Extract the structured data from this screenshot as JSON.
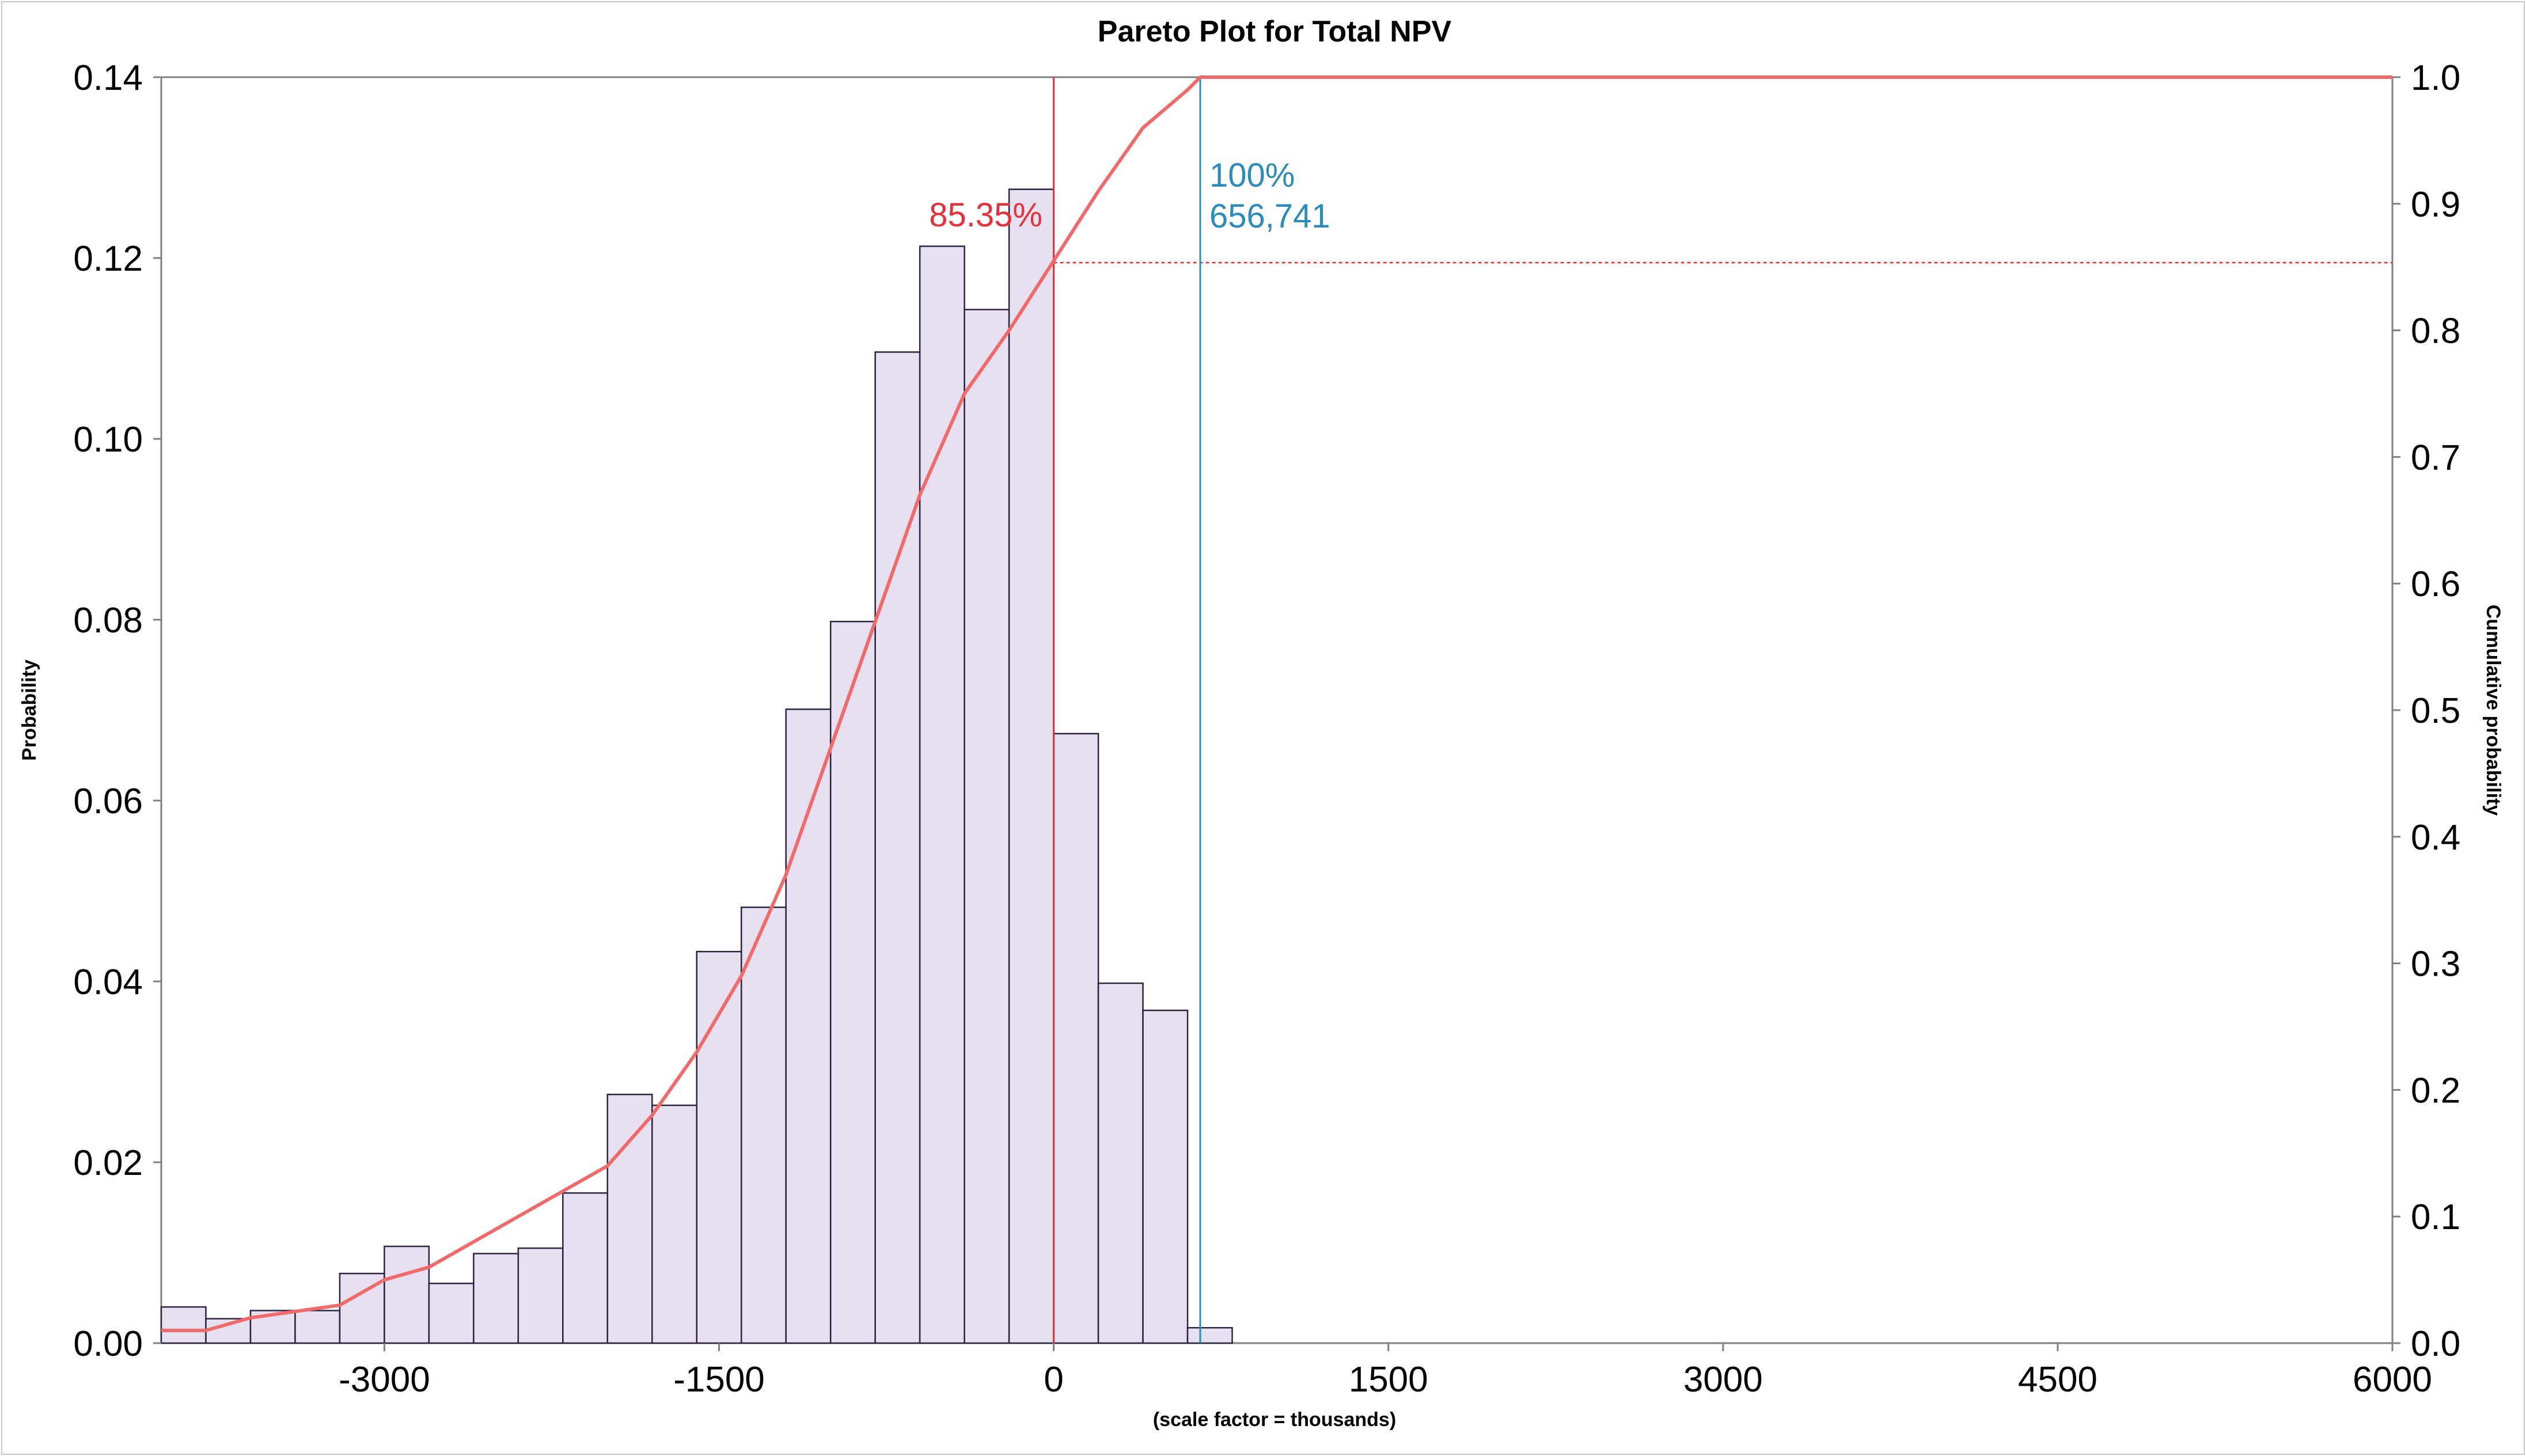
{
  "chart_data": {
    "type": "bar",
    "title": "Pareto Plot for Total NPV",
    "xlabel": "(scale factor = thousands)",
    "ylabel": "Probability",
    "y2label": "Cumulative probability",
    "xlim": [
      -4000,
      6000
    ],
    "ylim": [
      0,
      0.14
    ],
    "y2lim": [
      0,
      1.0
    ],
    "x_ticks": [
      -3000,
      -1500,
      0,
      1500,
      3000,
      4500,
      6000
    ],
    "y_ticks": [
      0.0,
      0.02,
      0.04,
      0.06,
      0.08,
      0.1,
      0.12,
      0.14
    ],
    "y2_ticks": [
      0.0,
      0.1,
      0.2,
      0.3,
      0.4,
      0.5,
      0.6,
      0.7,
      0.8,
      0.9,
      1.0
    ],
    "bin_width": 200,
    "bins_start": [
      -4000,
      -3800,
      -3600,
      -3400,
      -3200,
      -3000,
      -2800,
      -2600,
      -2400,
      -2200,
      -2000,
      -1800,
      -1600,
      -1400,
      -1200,
      -1000,
      -800,
      -600,
      -400,
      -200,
      0,
      200,
      400,
      600
    ],
    "values": [
      0.004,
      0.0027,
      0.0036,
      0.0036,
      0.0077,
      0.0107,
      0.0066,
      0.0099,
      0.0105,
      0.0166,
      0.0275,
      0.0263,
      0.0433,
      0.0482,
      0.0701,
      0.0798,
      0.1096,
      0.1213,
      0.1143,
      0.1276,
      0.0674,
      0.0398,
      0.0368,
      0.0017
    ],
    "cumulative": {
      "name": "Cumulative probability",
      "x": [
        -4000,
        -3800,
        -3600,
        -3400,
        -3200,
        -3000,
        -2800,
        -2600,
        -2400,
        -2200,
        -2000,
        -1800,
        -1600,
        -1400,
        -1200,
        -1000,
        -800,
        -600,
        -400,
        -200,
        0,
        200,
        400,
        600,
        657,
        6000
      ],
      "y": [
        0.01,
        0.01,
        0.02,
        0.025,
        0.03,
        0.05,
        0.06,
        0.08,
        0.1,
        0.12,
        0.14,
        0.18,
        0.23,
        0.29,
        0.37,
        0.47,
        0.57,
        0.67,
        0.75,
        0.8,
        0.855,
        0.91,
        0.96,
        0.99,
        1.0,
        1.0
      ]
    },
    "markers": [
      {
        "x": 0,
        "label_pct": "85.35%",
        "cum_value": 0.8535,
        "color": "#e8303a"
      },
      {
        "x": 656.741,
        "label_pct": "100%",
        "label_val": "656,741",
        "color": "#2a8bbd"
      }
    ],
    "colors": {
      "bar_fill": "#e6e0f0",
      "bar_stroke": "#2b2340",
      "cumulative_line": "#f06a6a"
    },
    "grid": false,
    "legend": "none"
  }
}
